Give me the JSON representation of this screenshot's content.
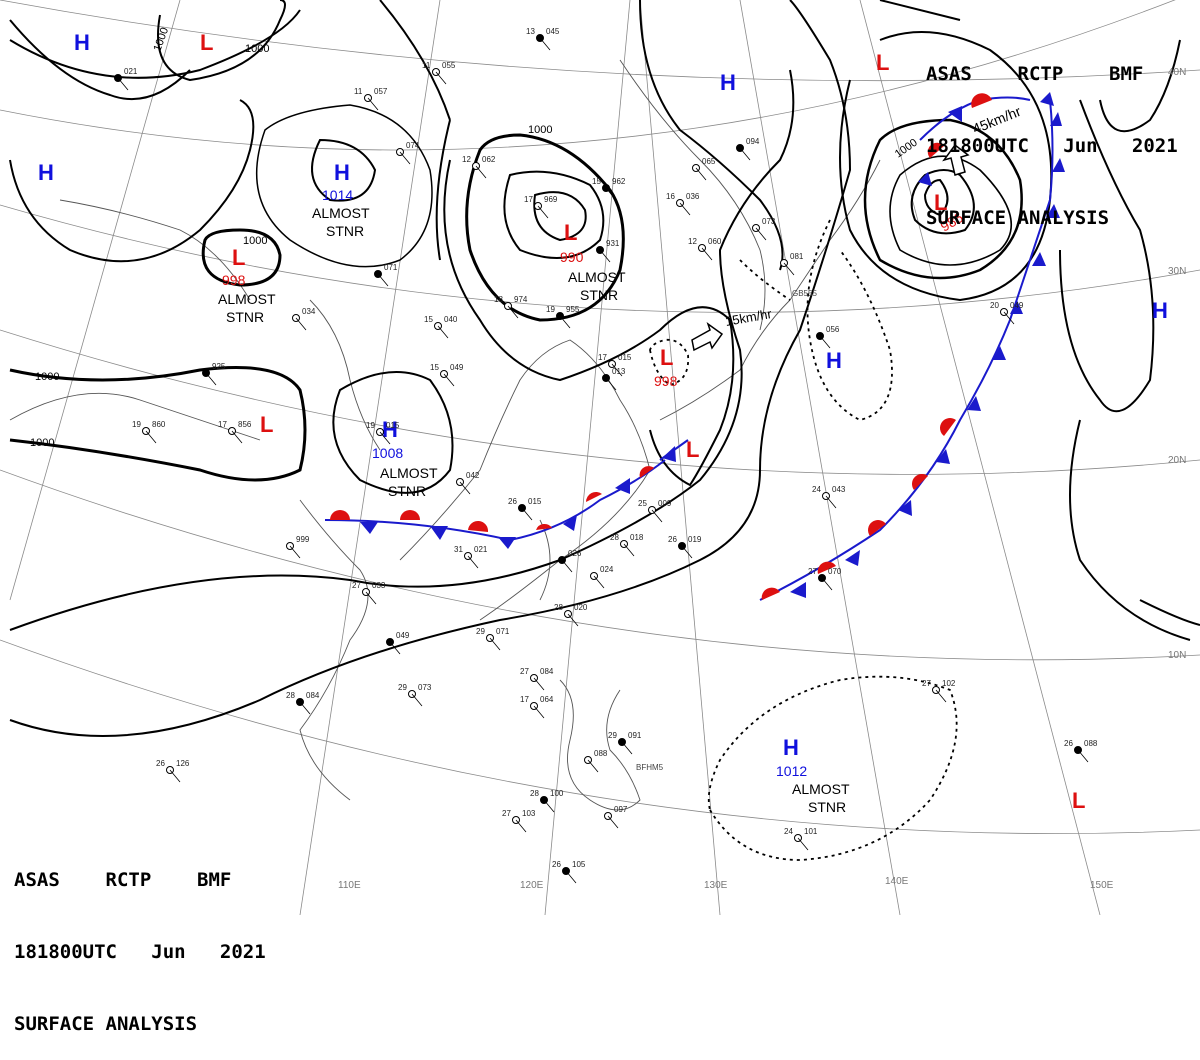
{
  "header": {
    "line1": "ASAS    RCTP    BMF",
    "line2": "181800UTC   Jun   2021",
    "line3": "SURFACE ANALYSIS"
  },
  "colors": {
    "high": "#1010dd",
    "low": "#dd1010",
    "isobar": "#000000",
    "grid": "#888888",
    "coast": "#555555"
  },
  "lat_labels": [
    "40N",
    "30N",
    "20N",
    "10N"
  ],
  "lon_labels": [
    "110E",
    "120E",
    "130E",
    "140E",
    "150E"
  ],
  "isobar_labels": [
    "1000",
    "1000",
    "1000",
    "1000",
    "1000",
    "1000",
    "1000"
  ],
  "pressure_centers": [
    {
      "kind": "high",
      "symbol": "H"
    },
    {
      "kind": "low",
      "symbol": "L"
    },
    {
      "kind": "high",
      "symbol": "H"
    },
    {
      "kind": "high",
      "symbol": "H",
      "value": "1014",
      "note1": "ALMOST",
      "note2": "STNR"
    },
    {
      "kind": "low",
      "symbol": "L",
      "value": "998",
      "note1": "ALMOST",
      "note2": "STNR"
    },
    {
      "kind": "low",
      "symbol": "L",
      "value": "990",
      "note1": "ALMOST",
      "note2": "STNR"
    },
    {
      "kind": "high",
      "symbol": "H"
    },
    {
      "kind": "low",
      "symbol": "L"
    },
    {
      "kind": "low",
      "symbol": "L",
      "value": "986"
    },
    {
      "kind": "high",
      "symbol": "H"
    },
    {
      "kind": "high",
      "symbol": "H"
    },
    {
      "kind": "low",
      "symbol": "L"
    },
    {
      "kind": "high",
      "symbol": "H",
      "value": "1008",
      "note1": "ALMOST",
      "note2": "STNR"
    },
    {
      "kind": "low",
      "symbol": "L",
      "value": "998"
    },
    {
      "kind": "low",
      "symbol": "L"
    },
    {
      "kind": "high",
      "symbol": "H",
      "value": "1012",
      "note1": "ALMOST",
      "note2": "STNR"
    },
    {
      "kind": "low",
      "symbol": "L"
    }
  ],
  "motion_labels": [
    "45km/hr",
    "15km/hr"
  ],
  "stations": [
    {
      "t": "13",
      "p": "045"
    },
    {
      "t": "11",
      "p": "055"
    },
    {
      "t": "11",
      "p": "057"
    },
    {
      "p": "021"
    },
    {
      "p": "074"
    },
    {
      "t": "12",
      "p": "062"
    },
    {
      "t": "15",
      "p": "962"
    },
    {
      "t": "16",
      "p": "036"
    },
    {
      "t": "17",
      "p": "969"
    },
    {
      "p": "931"
    },
    {
      "t": "12",
      "p": "060"
    },
    {
      "p": "065"
    },
    {
      "p": "094"
    },
    {
      "p": "073"
    },
    {
      "p": "081"
    },
    {
      "p": "056"
    },
    {
      "t": "20",
      "p": "049"
    },
    {
      "p": "034"
    },
    {
      "p": "071"
    },
    {
      "t": "15",
      "p": "040"
    },
    {
      "t": "18",
      "p": "974"
    },
    {
      "t": "19",
      "p": "955"
    },
    {
      "t": "15",
      "p": "049"
    },
    {
      "t": "17",
      "p": "015"
    },
    {
      "p": "013"
    },
    {
      "t": "19",
      "p": "860"
    },
    {
      "t": "17",
      "p": "856"
    },
    {
      "p": "925"
    },
    {
      "t": "19",
      "p": "015"
    },
    {
      "p": "042"
    },
    {
      "t": "26",
      "p": "015"
    },
    {
      "t": "25",
      "p": "009"
    },
    {
      "t": "31",
      "p": "021"
    },
    {
      "p": "026"
    },
    {
      "p": "024"
    },
    {
      "t": "28",
      "p": "018"
    },
    {
      "t": "26",
      "p": "019"
    },
    {
      "t": "28",
      "p": "020"
    },
    {
      "t": "24",
      "p": "043"
    },
    {
      "t": "27",
      "p": "070"
    },
    {
      "p": "999"
    },
    {
      "t": "27",
      "p": "033"
    },
    {
      "p": "049"
    },
    {
      "t": "29",
      "p": "071"
    },
    {
      "t": "29",
      "p": "073"
    },
    {
      "t": "28",
      "p": "084"
    },
    {
      "t": "27",
      "p": "084"
    },
    {
      "t": "17",
      "p": "064"
    },
    {
      "t": "29",
      "p": "091"
    },
    {
      "p": "088"
    },
    {
      "t": "26",
      "p": "126"
    },
    {
      "t": "28",
      "p": "100"
    },
    {
      "p": "097"
    },
    {
      "t": "27",
      "p": "103"
    },
    {
      "t": "26",
      "p": "105"
    },
    {
      "t": "27",
      "p": "102"
    },
    {
      "t": "24",
      "p": "101"
    },
    {
      "t": "26",
      "p": "088"
    }
  ],
  "ship_ids": [
    "GB555",
    "BFHM5"
  ]
}
